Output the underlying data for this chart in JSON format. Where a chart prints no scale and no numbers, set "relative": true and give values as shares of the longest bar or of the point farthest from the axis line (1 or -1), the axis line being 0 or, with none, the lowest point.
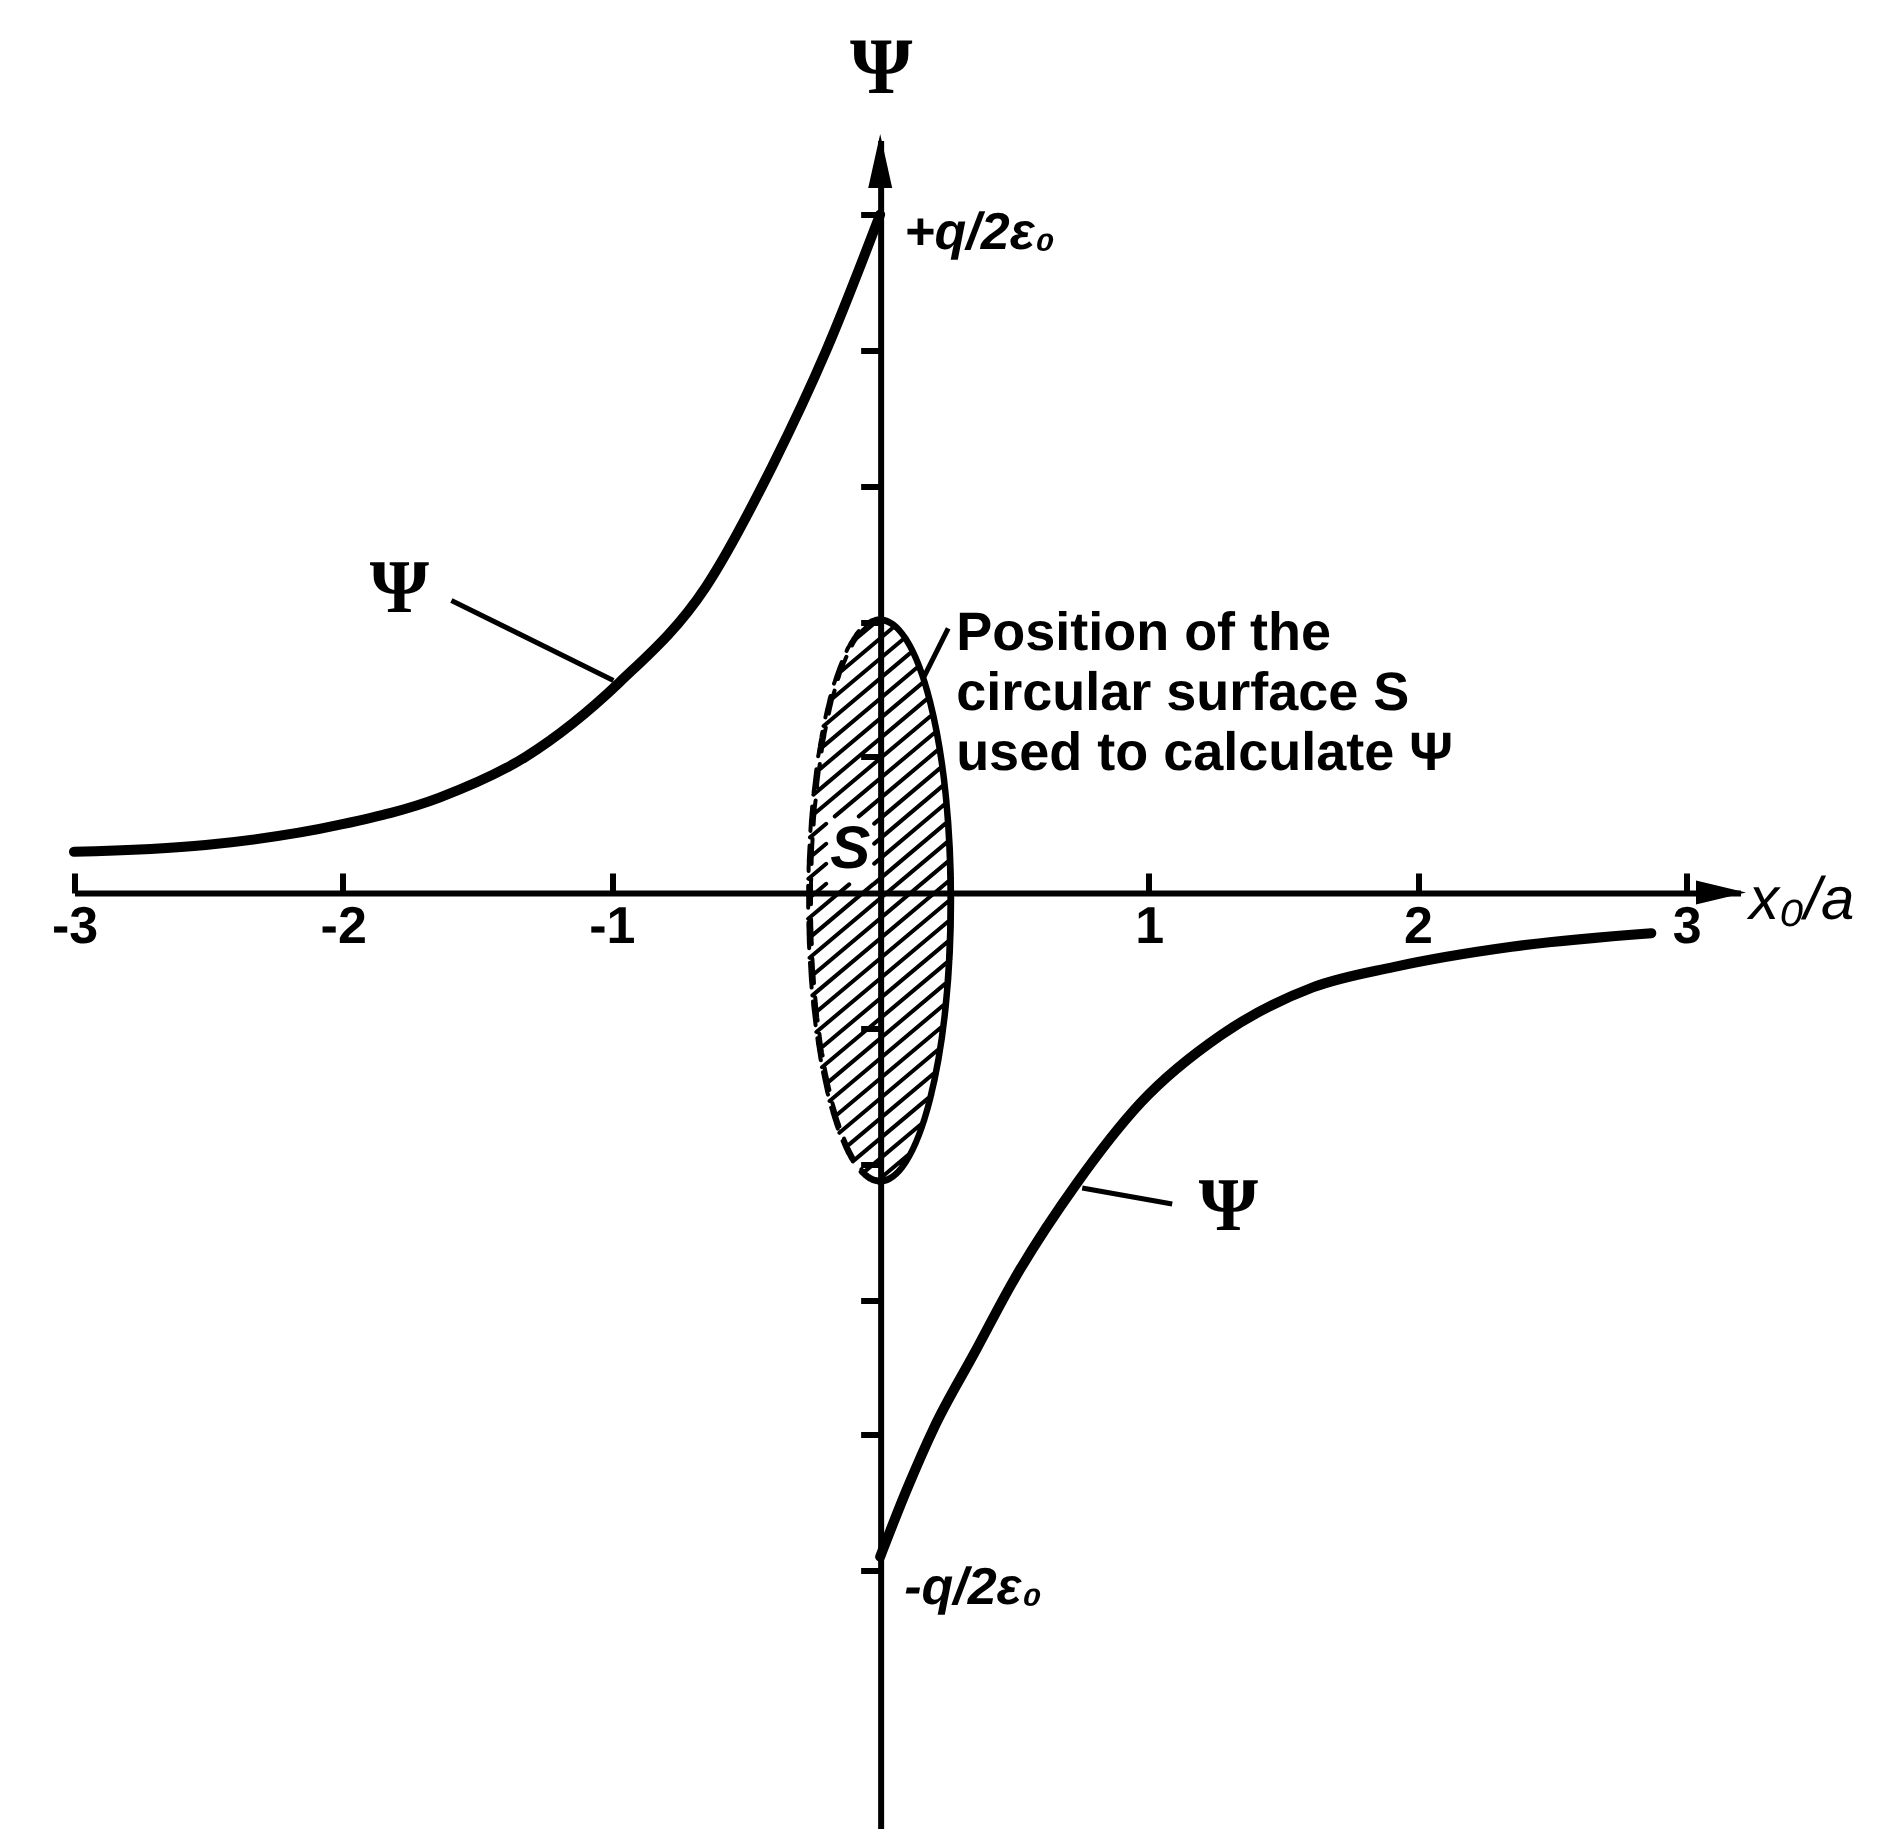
{
  "chart_data": {
    "type": "line",
    "relative": true,
    "xlabel": "x₀/a",
    "ylabel": "Ψ",
    "annotations": [
      "Position of the circular surface S used to calculate Ψ",
      "S",
      "+q/2ε₀",
      "-q/2ε₀"
    ],
    "xlim": [
      -3,
      3.2
    ],
    "xticks": [
      -3,
      -2,
      -1,
      1,
      2,
      3
    ],
    "series": [
      {
        "name": "Ψ",
        "color": "#000000",
        "x": [
          -3,
          -2.51,
          -2.01,
          -1.64,
          -1.32,
          -0.97,
          -0.65,
          -0.4,
          -0.2,
          0
        ],
        "values": [
          0.06,
          0.07,
          0.1,
          0.14,
          0.2,
          0.31,
          0.45,
          0.63,
          0.8,
          1
        ]
      },
      {
        "name": "Ψ",
        "color": "#000000",
        "x": [
          0,
          0.1,
          0.2,
          0.35,
          0.5,
          0.73,
          0.97,
          1.27,
          1.61,
          1.91,
          2.35,
          2.87
        ],
        "values": [
          -0.98,
          -0.88,
          -0.79,
          -0.68,
          -0.57,
          -0.43,
          -0.31,
          -0.21,
          -0.14,
          -0.11,
          -0.08,
          -0.06
        ]
      }
    ]
  }
}
